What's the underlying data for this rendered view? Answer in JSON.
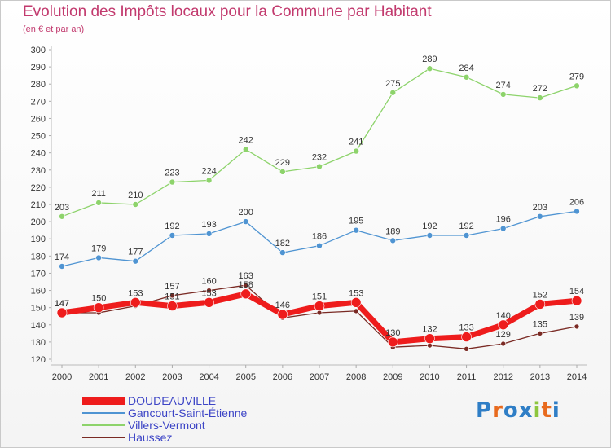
{
  "title": "Evolution des Impôts locaux pour la Commune par Habitant",
  "subtitle": "(en € et par an)",
  "logo": {
    "text": "Proxiti",
    "letter_colors": [
      "#2f7ec6",
      "#e86a1e",
      "#2f7ec6",
      "#2f7ec6",
      "#8dc63f",
      "#e86a1e",
      "#2f7ec6"
    ]
  },
  "chart_data": {
    "type": "line",
    "x": [
      2000,
      2001,
      2002,
      2003,
      2004,
      2005,
      2006,
      2007,
      2008,
      2009,
      2010,
      2011,
      2012,
      2013,
      2014
    ],
    "ylim": [
      120,
      300
    ],
    "yticks": [
      120,
      130,
      140,
      150,
      160,
      170,
      180,
      190,
      200,
      210,
      220,
      230,
      240,
      250,
      260,
      270,
      280,
      290,
      300
    ],
    "grid": false,
    "legend_position": "bottom-left",
    "series": [
      {
        "name": "Haussez",
        "color": "#7a2a24",
        "values": [
          147,
          147,
          151,
          157,
          160,
          163,
          144,
          147,
          148,
          127,
          128,
          126,
          129,
          135,
          139
        ],
        "labels": [
          "147",
          "",
          "",
          "157",
          "160",
          "163",
          "",
          "",
          "",
          "",
          "",
          "",
          "129",
          "135",
          "139"
        ]
      },
      {
        "name": "Gancourt-Saint-Étienne",
        "color": "#4f94d2",
        "values": [
          174,
          179,
          177,
          192,
          193,
          200,
          182,
          186,
          195,
          189,
          192,
          192,
          196,
          203,
          206
        ]
      },
      {
        "name": "Villers-Vermont",
        "color": "#8dd36b",
        "values": [
          203,
          211,
          210,
          223,
          224,
          242,
          229,
          232,
          241,
          275,
          289,
          284,
          274,
          272,
          279
        ]
      },
      {
        "name": "DOUDEAUVILLE",
        "color": "#ee1c1c",
        "values": [
          147,
          150,
          153,
          151,
          153,
          158,
          146,
          151,
          153,
          130,
          132,
          133,
          140,
          152,
          154
        ],
        "labels": [
          "147",
          "150",
          "153",
          "151",
          "153",
          "158",
          "146",
          "151",
          "153",
          "130",
          "132",
          "133",
          "140",
          "152",
          "154"
        ]
      }
    ],
    "legend": [
      "DOUDEAUVILLE",
      "Gancourt-Saint-Étienne",
      "Villers-Vermont",
      "Haussez"
    ]
  }
}
